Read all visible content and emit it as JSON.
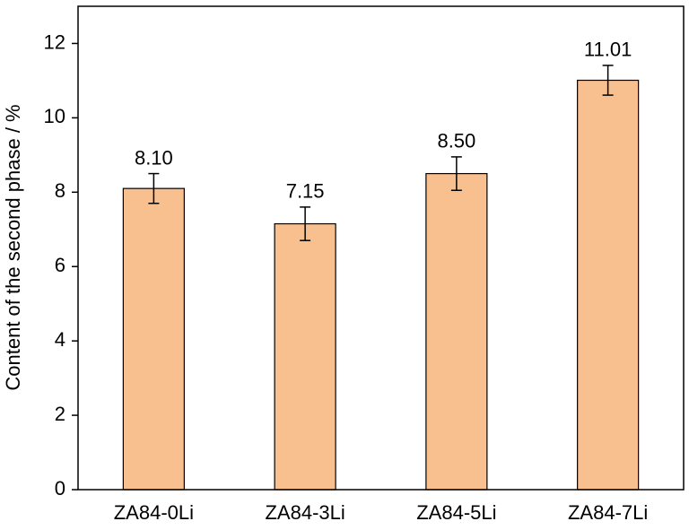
{
  "chart_data": {
    "type": "bar",
    "y_label": "Content of the second phase / %",
    "categories": [
      "ZA84-0Li",
      "ZA84-3Li",
      "ZA84-5Li",
      "ZA84-7Li"
    ],
    "values": [
      8.1,
      7.15,
      8.5,
      11.01
    ],
    "value_labels": [
      "8.10",
      "7.15",
      "8.50",
      "11.01"
    ],
    "errors": [
      0.4,
      0.45,
      0.45,
      0.4
    ],
    "color": "#f9c08f",
    "ylim": [
      0,
      13
    ],
    "yticks": [
      0,
      2,
      4,
      6,
      8,
      10,
      12
    ]
  }
}
